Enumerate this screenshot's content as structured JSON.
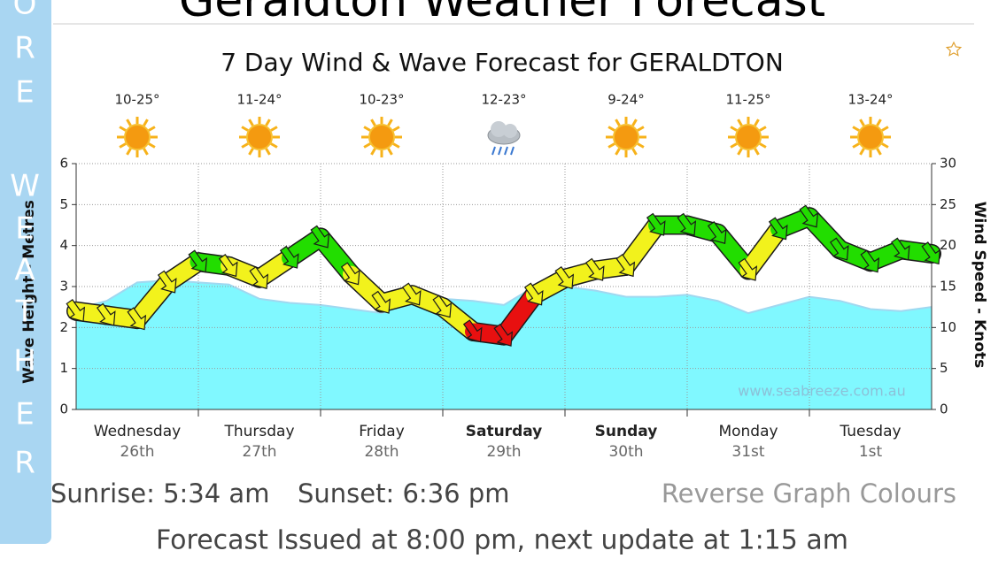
{
  "header": {
    "title": "Geraldton Weather Forecast"
  },
  "sidebar": {
    "letters": [
      "O",
      "R",
      "E",
      "W",
      "E",
      "A",
      "T",
      "H",
      "E",
      "R"
    ]
  },
  "chart_data": {
    "type": "wind_wave",
    "title": "7 Day Wind & Wave Forecast for GERALDTON",
    "days": [
      {
        "name": "Wednesday",
        "date": "26th",
        "temp": "10-25°",
        "icon": "sunny",
        "bold": false
      },
      {
        "name": "Thursday",
        "date": "27th",
        "temp": "11-24°",
        "icon": "sunny",
        "bold": false
      },
      {
        "name": "Friday",
        "date": "28th",
        "temp": "10-23°",
        "icon": "sunny",
        "bold": false
      },
      {
        "name": "Saturday",
        "date": "29th",
        "temp": "12-23°",
        "icon": "showers",
        "bold": true
      },
      {
        "name": "Sunday",
        "date": "30th",
        "temp": "9-24°",
        "icon": "sunny",
        "bold": true
      },
      {
        "name": "Monday",
        "date": "31st",
        "temp": "11-25°",
        "icon": "sunny",
        "bold": false
      },
      {
        "name": "Tuesday",
        "date": "1st",
        "temp": "13-24°",
        "icon": "sunny",
        "bold": false
      }
    ],
    "x": [
      0,
      6,
      12,
      18,
      24,
      30,
      36,
      42,
      48,
      54,
      60,
      66,
      72,
      78,
      84,
      90,
      96,
      102,
      108,
      114,
      120,
      126,
      132,
      138,
      144,
      150,
      156,
      162,
      168
    ],
    "xlim": [
      0,
      168
    ],
    "xticks": [
      24,
      48,
      72,
      96,
      120,
      144
    ],
    "ylim": [
      0,
      6
    ],
    "yticks": [
      0,
      1,
      2,
      3,
      4,
      5,
      6
    ],
    "y_label": "Wave Height - Metres",
    "y2lim": [
      0,
      30
    ],
    "y2ticks": [
      0,
      5,
      10,
      15,
      20,
      25,
      30
    ],
    "y2_label": "Wind Speed - Knots",
    "grid": true,
    "watermark": "www.seabreeze.com.au",
    "series": [
      {
        "color": "#80f8ff",
        "edge_color": "#a0d8f0",
        "values": [
          2.45,
          2.65,
          3.1,
          3.15,
          3.1,
          3.05,
          2.7,
          2.6,
          2.55,
          2.45,
          2.35,
          2.65,
          2.7,
          2.65,
          2.55,
          3.0,
          3.0,
          2.9,
          2.75,
          2.75,
          2.8,
          2.65,
          2.35,
          2.55,
          2.75,
          2.65,
          2.45,
          2.4,
          2.5
        ]
      },
      {
        "axis": "y2",
        "color": "#1a1a1a",
        "values": [
          12,
          11.5,
          11,
          15.5,
          18,
          17.5,
          16,
          18.5,
          21,
          16.5,
          13,
          14,
          12.5,
          9.5,
          9,
          14,
          16,
          17,
          17.5,
          22.5,
          22.5,
          21.5,
          17,
          22,
          23.5,
          19.5,
          18,
          19.5,
          19
        ],
        "point_colors": [
          "#f2f21c",
          "#f2f21c",
          "#f2f21c",
          "#f2f21c",
          "#22dd00",
          "#f2f21c",
          "#f2f21c",
          "#22dd00",
          "#22dd00",
          "#f2f21c",
          "#f2f21c",
          "#f2f21c",
          "#f2f21c",
          "#e81010",
          "#e81010",
          "#f2f21c",
          "#f2f21c",
          "#f2f21c",
          "#f2f21c",
          "#22dd00",
          "#22dd00",
          "#22dd00",
          "#f2f21c",
          "#22dd00",
          "#22dd00",
          "#22dd00",
          "#22dd00",
          "#22dd00",
          "#22dd00"
        ]
      }
    ]
  },
  "footer": {
    "sunrise": "Sunrise: 5:34 am",
    "sunset": "Sunset: 6:36 pm",
    "reverse": "Reverse Graph Colours",
    "issued": "Forecast Issued at 8:00 pm, next update at 1:15 am"
  }
}
